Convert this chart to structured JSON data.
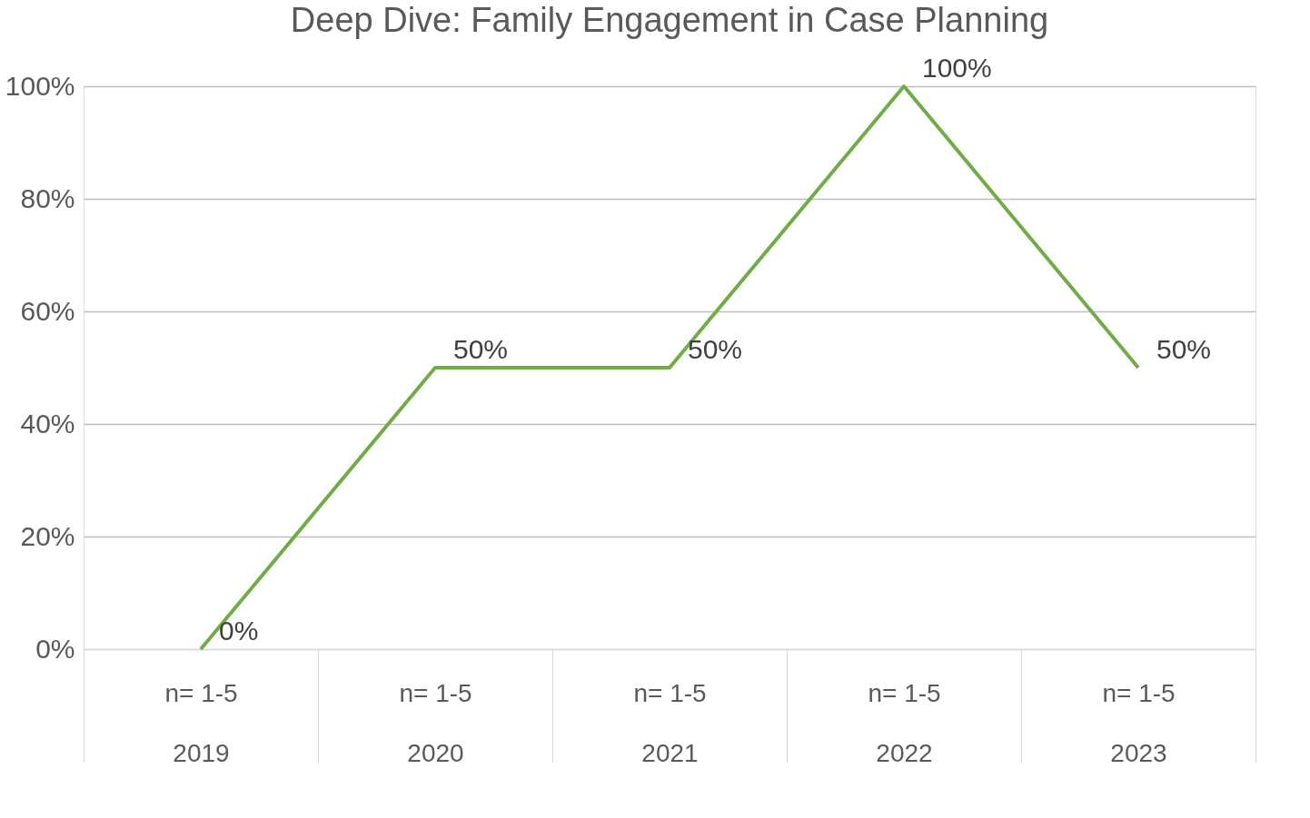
{
  "chart_data": {
    "type": "line",
    "title": "Deep Dive: Family Engagement in Case Planning",
    "categories": [
      "n= 1-5\n2019",
      "n= 1-5\n2020",
      "n= 1-5\n2021",
      "n= 1-5\n2022",
      "n= 1-5\n2023"
    ],
    "series": [
      {
        "color": "#70ad47",
        "values": [
          0,
          50,
          50,
          100,
          50
        ],
        "value_labels": [
          "0%",
          "50%",
          "50%",
          "100%",
          "50%"
        ]
      }
    ],
    "ylim": [
      0,
      100
    ],
    "yticks": [
      {
        "value": 0,
        "label": "0%"
      },
      {
        "value": 20,
        "label": "20%"
      },
      {
        "value": 40,
        "label": "40%"
      },
      {
        "value": 60,
        "label": "60%"
      },
      {
        "value": 80,
        "label": "80%"
      },
      {
        "value": 100,
        "label": "100%"
      }
    ],
    "grid": "y",
    "marker": "none",
    "line_style": "solid"
  }
}
